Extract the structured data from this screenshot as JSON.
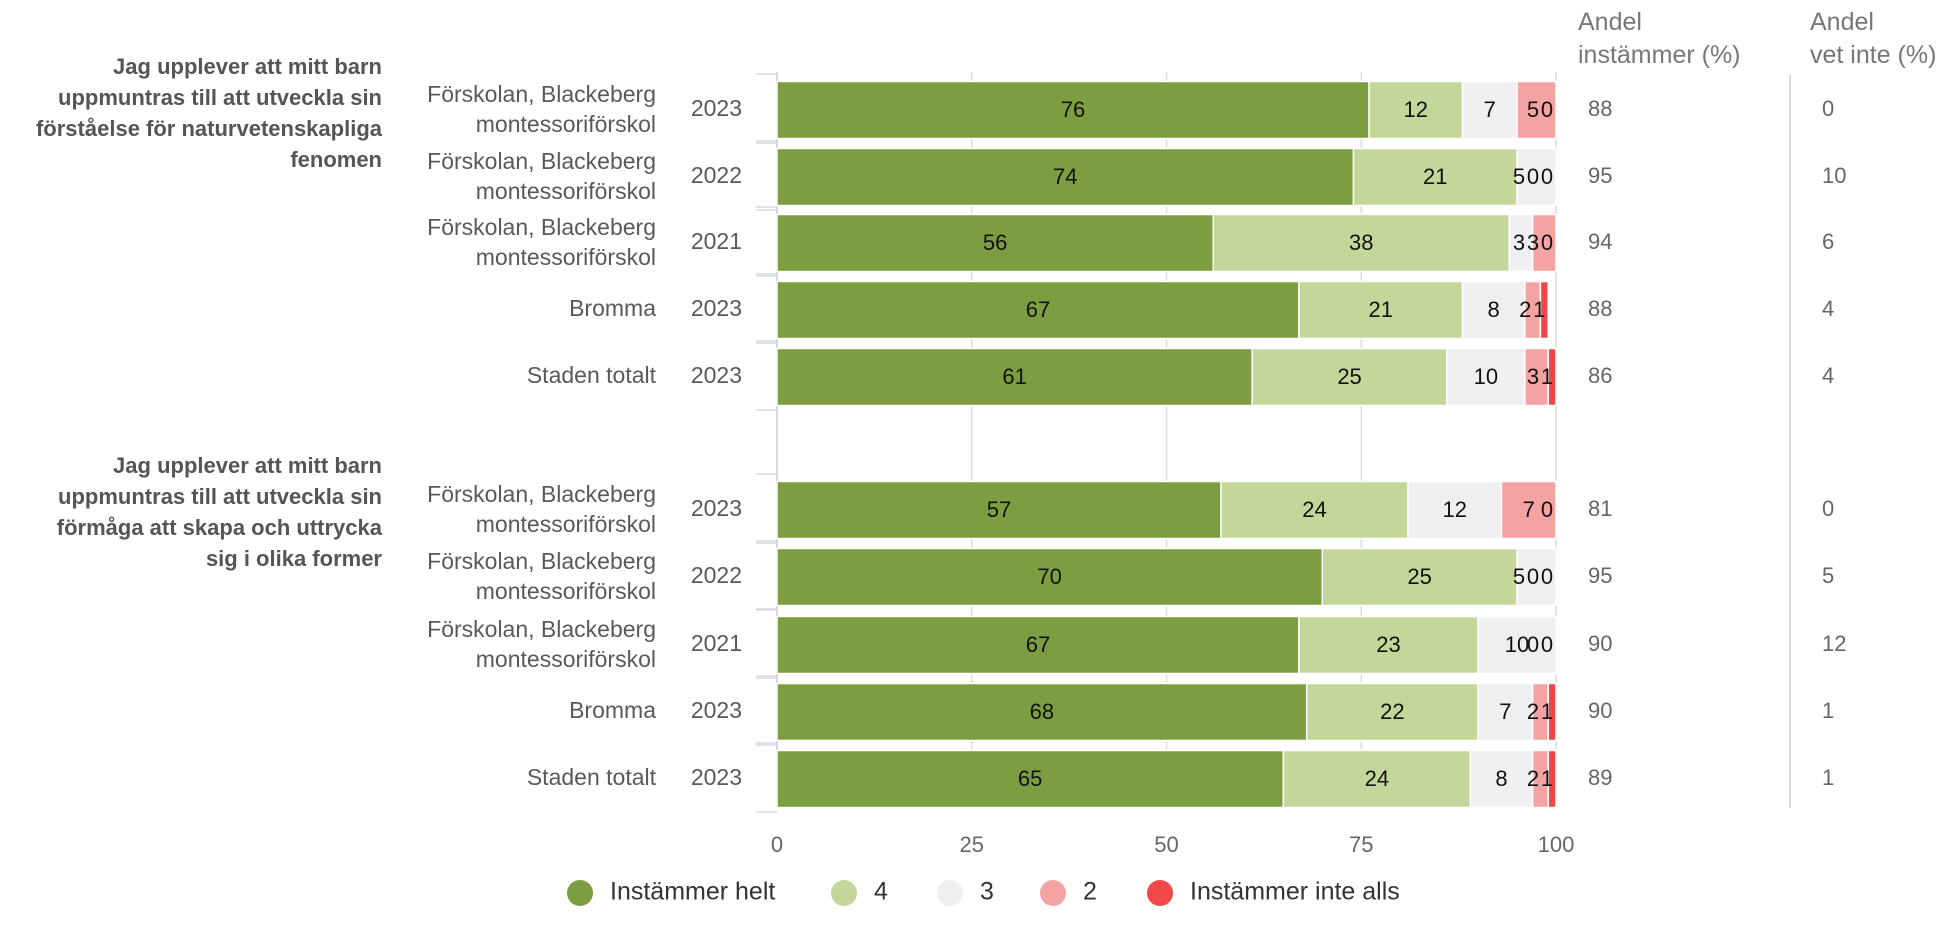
{
  "chart_data": {
    "type": "bar",
    "orientation": "horizontal",
    "stacked": true,
    "xlim": [
      0,
      100
    ],
    "xticks": [
      0,
      25,
      50,
      75,
      100
    ],
    "grid": true,
    "legend_position": "bottom",
    "column_headers": {
      "agree": [
        "Andel",
        "instämmer (%)"
      ],
      "dont_know": [
        "Andel",
        "vet inte (%)"
      ]
    },
    "series": [
      {
        "name": "Instämmer helt",
        "color": "#7d9e40"
      },
      {
        "name": "4",
        "color": "#c4d79b"
      },
      {
        "name": "3",
        "color": "#efefef"
      },
      {
        "name": "2",
        "color": "#f4a3a3"
      },
      {
        "name": "Instämmer inte alls",
        "color": "#f04848"
      }
    ],
    "groups": [
      {
        "question": [
          "Jag upplever att mitt barn",
          "uppmuntras till att utveckla sin",
          "förståelse för naturvetenskapliga",
          "fenomen"
        ],
        "rows": [
          {
            "label": [
              "Förskolan, Blackeberg",
              "montessoriförskol"
            ],
            "year": "2023",
            "values": [
              76,
              12,
              7,
              5,
              0
            ],
            "agree": "88",
            "dont_know": "0"
          },
          {
            "label": [
              "Förskolan, Blackeberg",
              "montessoriförskol"
            ],
            "year": "2022",
            "values": [
              74,
              21,
              5,
              0,
              0
            ],
            "agree": "95",
            "dont_know": "10"
          },
          {
            "label": [
              "Förskolan, Blackeberg",
              "montessoriförskol"
            ],
            "year": "2021",
            "values": [
              56,
              38,
              3,
              3,
              0
            ],
            "agree": "94",
            "dont_know": "6"
          },
          {
            "label": [
              "Bromma"
            ],
            "year": "2023",
            "values": [
              67,
              21,
              8,
              2,
              1
            ],
            "agree": "88",
            "dont_know": "4"
          },
          {
            "label": [
              "Staden totalt"
            ],
            "year": "2023",
            "values": [
              61,
              25,
              10,
              3,
              1
            ],
            "agree": "86",
            "dont_know": "4"
          }
        ]
      },
      {
        "question": [
          "Jag upplever att mitt barn",
          "uppmuntras till att utveckla sin",
          "förmåga att skapa och uttrycka",
          "sig i olika former"
        ],
        "rows": [
          {
            "label": [
              "Förskolan, Blackeberg",
              "montessoriförskol"
            ],
            "year": "2023",
            "values": [
              57,
              24,
              12,
              7,
              0
            ],
            "agree": "81",
            "dont_know": "0"
          },
          {
            "label": [
              "Förskolan, Blackeberg",
              "montessoriförskol"
            ],
            "year": "2022",
            "values": [
              70,
              25,
              5,
              0,
              0
            ],
            "agree": "95",
            "dont_know": "5"
          },
          {
            "label": [
              "Förskolan, Blackeberg",
              "montessoriförskol"
            ],
            "year": "2021",
            "values": [
              67,
              23,
              10,
              0,
              0
            ],
            "agree": "90",
            "dont_know": "12"
          },
          {
            "label": [
              "Bromma"
            ],
            "year": "2023",
            "values": [
              68,
              22,
              7,
              2,
              1
            ],
            "agree": "90",
            "dont_know": "1"
          },
          {
            "label": [
              "Staden totalt"
            ],
            "year": "2023",
            "values": [
              65,
              24,
              8,
              2,
              1
            ],
            "agree": "89",
            "dont_know": "1"
          }
        ]
      }
    ]
  }
}
